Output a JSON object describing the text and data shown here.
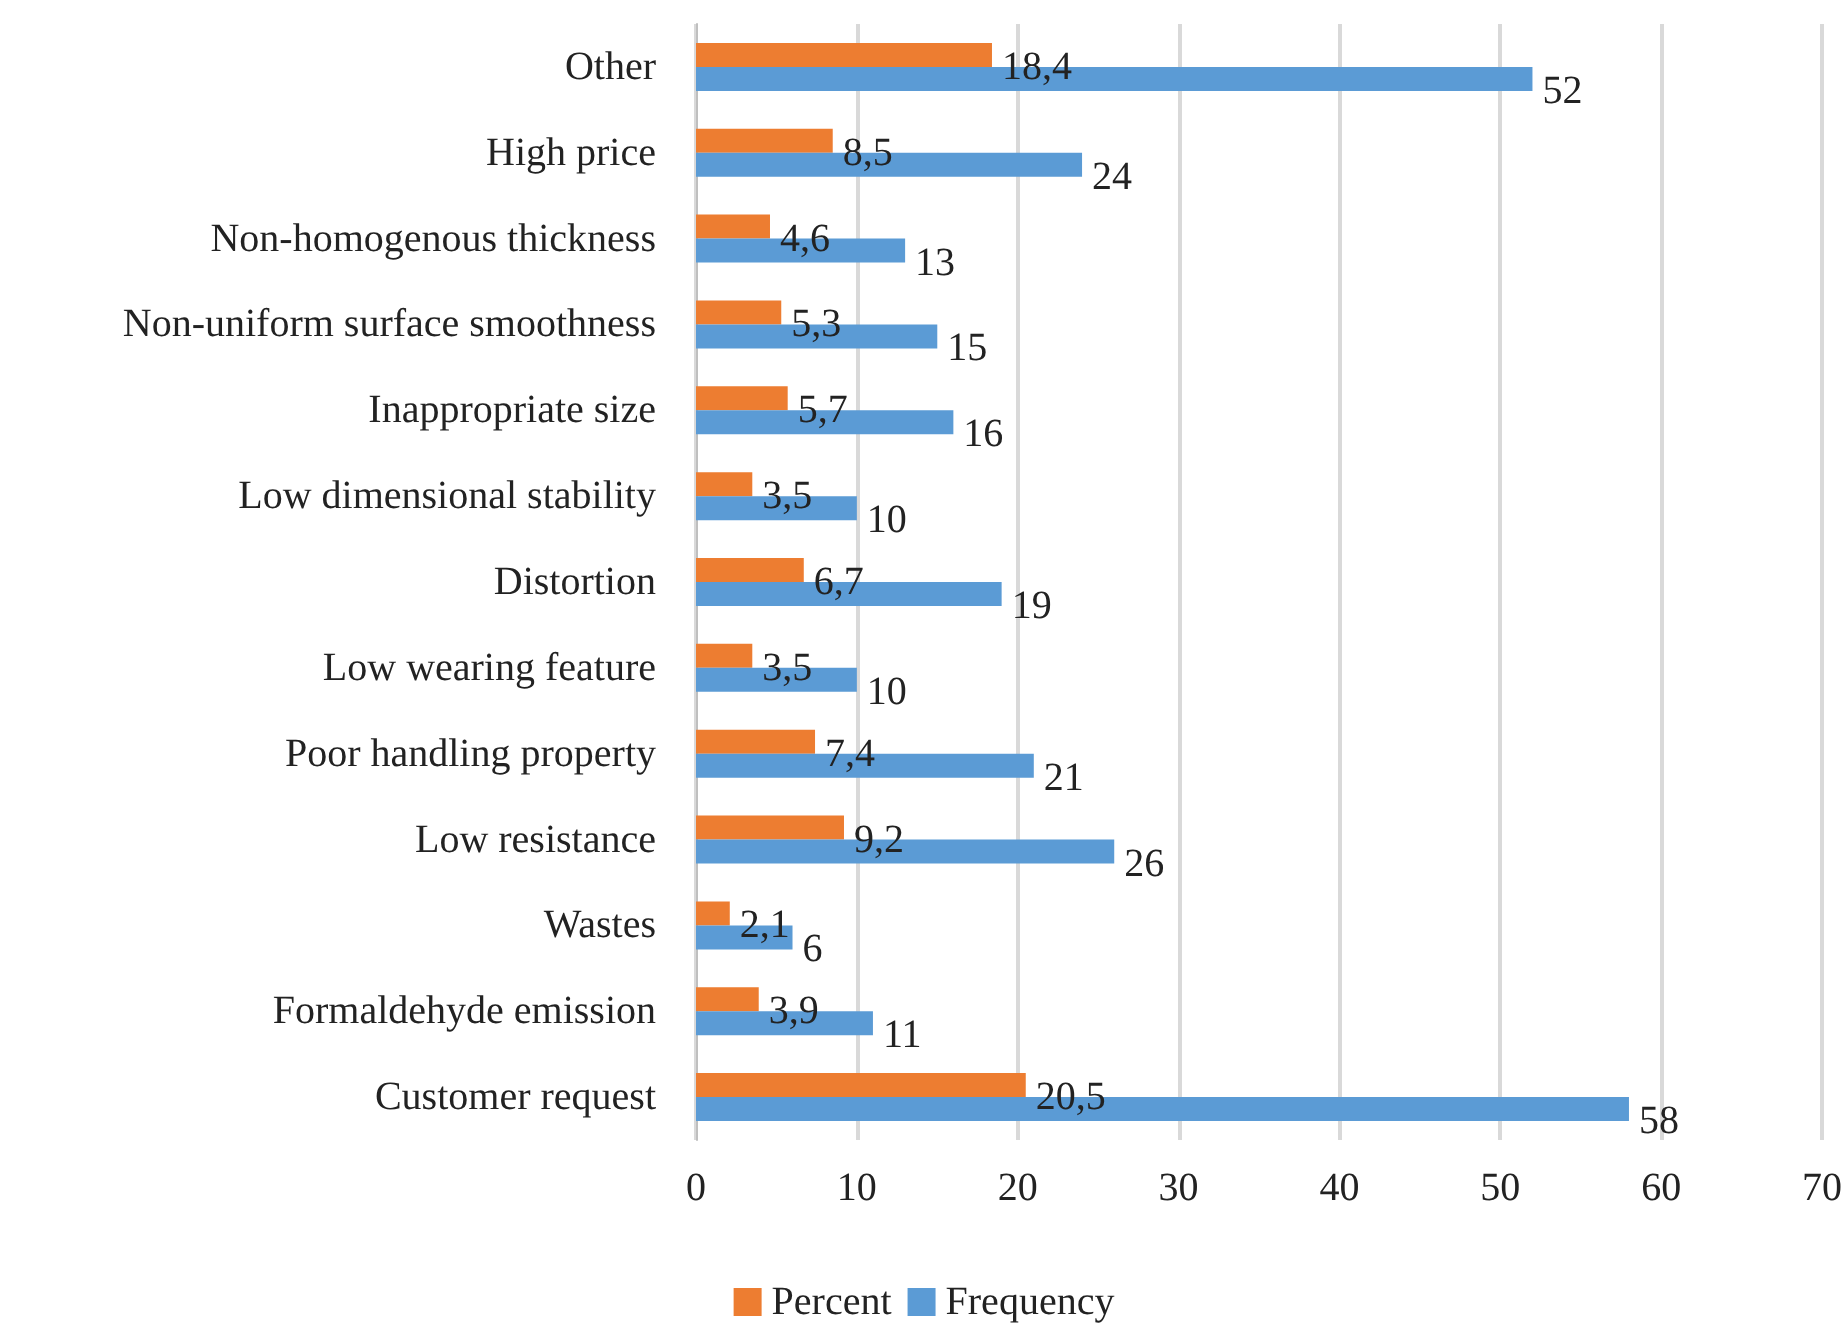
{
  "chart_data": {
    "type": "bar",
    "orientation": "horizontal",
    "categories": [
      "Other",
      "High price",
      "Non-homogenous thickness",
      "Non-uniform surface smoothness",
      "Inappropriate size",
      "Low dimensional stability",
      "Distortion",
      "Low wearing feature",
      "Poor handling property",
      "Low resistance",
      "Wastes",
      "Formaldehyde emission",
      "Customer request"
    ],
    "series": [
      {
        "name": "Percent",
        "color": "#ed7d31",
        "values": [
          18.4,
          8.5,
          4.6,
          5.3,
          5.7,
          3.5,
          6.7,
          3.5,
          7.4,
          9.2,
          2.1,
          3.9,
          20.5
        ],
        "value_labels": [
          "18,4",
          "8,5",
          "4,6",
          "5,3",
          "5,7",
          "3,5",
          "6,7",
          "3,5",
          "7,4",
          "9,2",
          "2,1",
          "3,9",
          "20,5"
        ]
      },
      {
        "name": "Frequency",
        "color": "#5b9bd5",
        "values": [
          52,
          24,
          13,
          15,
          16,
          10,
          19,
          10,
          21,
          26,
          6,
          11,
          58
        ],
        "value_labels": [
          "52",
          "24",
          "13",
          "15",
          "16",
          "10",
          "19",
          "10",
          "21",
          "26",
          "6",
          "11",
          "58"
        ]
      }
    ],
    "xlim": [
      0,
      70
    ],
    "xticks": [
      0,
      10,
      20,
      30,
      40,
      50,
      60,
      70
    ],
    "grid": "x",
    "legend": "bottom"
  }
}
